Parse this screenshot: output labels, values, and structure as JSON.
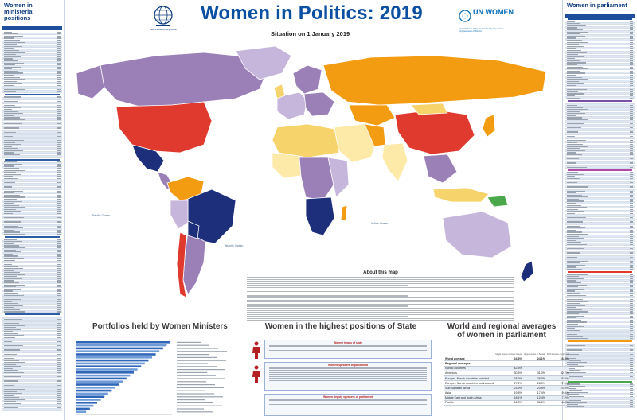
{
  "header": {
    "title": "Women in Politics: 2019",
    "subtitle": "Situation on 1 January 2019",
    "ipu_text": "Inter-Parliamentary Union",
    "unw_logo_text": "UN WOMEN",
    "unw_small": "United Nations Entity for Gender Equality and the Empowerment of Women"
  },
  "left_column": {
    "title": "Women in ministerial positions"
  },
  "right_column": {
    "title": "Women in parliament"
  },
  "map": {
    "ocean_labels": [
      "Pacific Ocean",
      "Atlantic Ocean",
      "Indian Ocean"
    ],
    "region_colors": {
      "orange": "#f39c12",
      "purple": "#9b80b8",
      "light_purple": "#c7b6dc",
      "red": "#e03a2f",
      "navy": "#1d2f7a",
      "yellow": "#f7d36b",
      "pale_yellow": "#fde9a8",
      "green": "#4aa84a",
      "ocean": "#ffffff"
    }
  },
  "about": {
    "title": "About this map"
  },
  "ministers": {
    "title": "Portfolios held by Women Ministers"
  },
  "positions": {
    "title": "Women in the highest positions of State",
    "box1_title": "Women heads of state",
    "box2_title": "Women speakers of parliament",
    "box3_title": "Women deputy speakers of parliament"
  },
  "averages": {
    "title": "World and regional averages of women in parliament",
    "headers": [
      "",
      "Single House or lower House",
      "Upper House or Senate",
      "Both Houses combined"
    ],
    "rows": [
      {
        "label": "World average",
        "a": "24.3%",
        "b": "24.1%",
        "c": "24.3%",
        "style": "bold"
      },
      {
        "label": "Regional averages",
        "a": "",
        "b": "",
        "c": "",
        "style": "bold"
      },
      {
        "label": "Nordic countries",
        "a": "42.5%",
        "b": "",
        "c": "",
        "style": "shade"
      },
      {
        "label": "Americas",
        "a": "30.6%",
        "b": "31.3%",
        "c": "30.7%",
        "style": ""
      },
      {
        "label": "Europe - Nordic countries included",
        "a": "28.6%",
        "b": "28.0%",
        "c": "28.5%",
        "style": "shade"
      },
      {
        "label": "Europe - Nordic countries not included",
        "a": "27.2%",
        "b": "28.0%",
        "c": "27.4%",
        "style": ""
      },
      {
        "label": "Sub-Saharan Africa",
        "a": "23.9%",
        "b": "23.9%",
        "c": "23.9%",
        "style": "shade"
      },
      {
        "label": "Asia",
        "a": "19.8%",
        "b": "17.4%",
        "c": "19.6%",
        "style": ""
      },
      {
        "label": "Middle East and North Africa",
        "a": "18.1%",
        "b": "12.4%",
        "c": "17.2%",
        "style": "shade"
      },
      {
        "label": "Pacific",
        "a": "16.3%",
        "b": "36.0%",
        "c": "18.4%",
        "style": ""
      }
    ]
  }
}
